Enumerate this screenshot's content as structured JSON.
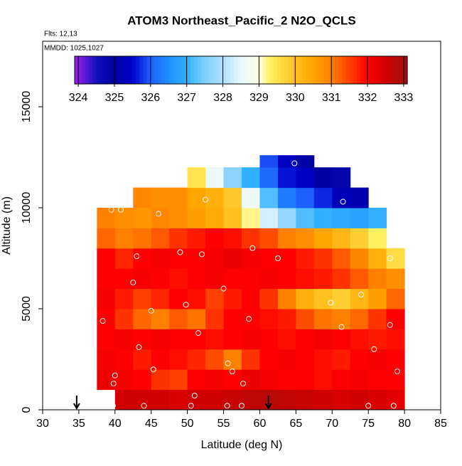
{
  "chart_data": {
    "type": "heatmap",
    "title": "ATOM3 Northeast_Pacific_2 N2O_QCLS",
    "annotations": [
      "Flts: 12,13",
      "MMDD: 1025,1027"
    ],
    "xlabel": "Latitude (deg N)",
    "ylabel": "Altitude (m)",
    "xlim": [
      30,
      85
    ],
    "ylim": [
      0,
      18240
    ],
    "xticks": [
      30,
      35,
      40,
      45,
      50,
      55,
      60,
      65,
      70,
      75,
      80,
      85
    ],
    "yticks": [
      0,
      5000,
      10000,
      15000
    ],
    "xbins": [
      37.5,
      40,
      42.5,
      45,
      47.5,
      50,
      52.5,
      55,
      57.5,
      60,
      62.5,
      65,
      67.5,
      70,
      72.5,
      75,
      77.5,
      80
    ],
    "ybins": [
      0,
      1000,
      2000,
      3000,
      4000,
      5000,
      6000,
      7000,
      8000,
      9000,
      10000,
      11000,
      12000,
      12600
    ],
    "values": [
      [
        null,
        332.5,
        332.5,
        332.5,
        332.4,
        332.5,
        332.5,
        332.6,
        332.7,
        332.8,
        332.7,
        332.6,
        332.5,
        332.4,
        332.5,
        332.4,
        332.3
      ],
      [
        332.2,
        332.1,
        332.0,
        331.6,
        331.5,
        332.0,
        332.1,
        332.0,
        332.2,
        332.1,
        332.0,
        332.0,
        331.9,
        332.0,
        332.1,
        332.0,
        332.0
      ],
      [
        332.1,
        332.0,
        331.8,
        332.0,
        331.9,
        331.7,
        331.4,
        331.0,
        331.6,
        332.0,
        332.1,
        332.0,
        331.9,
        331.8,
        332.0,
        332.1,
        332.0
      ],
      [
        332.0,
        332.1,
        332.0,
        332.1,
        332.0,
        332.0,
        331.9,
        332.0,
        332.1,
        332.0,
        331.9,
        332.0,
        332.1,
        332.0,
        331.9,
        331.8,
        331.9
      ],
      [
        332.0,
        331.6,
        331.2,
        331.0,
        331.3,
        331.1,
        331.6,
        332.0,
        332.0,
        331.9,
        331.8,
        331.4,
        331.1,
        331.0,
        331.2,
        331.6,
        332.0
      ],
      [
        332.1,
        331.8,
        331.5,
        331.7,
        332.0,
        331.9,
        331.5,
        331.8,
        332.0,
        331.6,
        331.0,
        330.3,
        330.0,
        329.8,
        330.2,
        330.6,
        331.2
      ],
      [
        332.0,
        332.0,
        332.1,
        332.0,
        331.9,
        332.0,
        332.1,
        332.0,
        332.0,
        332.1,
        332.0,
        331.9,
        331.8,
        331.6,
        331.3,
        331.0,
        330.8
      ],
      [
        332.0,
        331.7,
        332.0,
        332.1,
        332.0,
        332.0,
        332.1,
        332.2,
        332.1,
        332.0,
        332.0,
        331.8,
        331.6,
        331.3,
        330.9,
        330.3,
        329.6
      ],
      [
        331.2,
        331.0,
        331.1,
        331.3,
        331.6,
        331.8,
        332.0,
        331.9,
        331.6,
        331.4,
        331.0,
        330.8,
        330.5,
        330.2,
        329.8,
        329.3,
        null
      ],
      [
        331.0,
        330.8,
        330.7,
        330.9,
        330.8,
        330.6,
        330.4,
        330.0,
        329.2,
        328.3,
        327.7,
        327.2,
        327.0,
        326.9,
        326.8,
        327.0,
        null
      ],
      [
        null,
        null,
        330.9,
        330.8,
        330.8,
        330.5,
        330.3,
        329.9,
        328.6,
        327.2,
        326.3,
        326.0,
        325.7,
        325.3,
        325.2,
        null,
        null
      ],
      [
        null,
        null,
        null,
        null,
        null,
        329.5,
        328.6,
        327.6,
        327.0,
        326.1,
        325.6,
        325.4,
        325.0,
        324.8,
        null,
        null,
        null
      ],
      [
        null,
        null,
        null,
        null,
        null,
        null,
        null,
        null,
        null,
        325.9,
        325.4,
        324.9,
        null,
        null,
        null,
        null,
        null
      ]
    ],
    "points": {
      "x": [
        39.5,
        40.8,
        46,
        52.5,
        71.5,
        64.8,
        43,
        49,
        52,
        59,
        62.5,
        78,
        42.5,
        55,
        74,
        45,
        49.8,
        38.3,
        58.5,
        69.8,
        71.3,
        78,
        51.5,
        43.3,
        75.8,
        55.6,
        45.3,
        56.2,
        79,
        40,
        39.8,
        57.7,
        51,
        39.7,
        44,
        50.5,
        55.5,
        57.5,
        75,
        78.5
      ],
      "y": [
        9900,
        9900,
        9700,
        10400,
        10300,
        12200,
        7600,
        7800,
        7700,
        8000,
        7500,
        7500,
        6300,
        6000,
        5700,
        4900,
        5200,
        4400,
        4500,
        5300,
        4100,
        4200,
        3800,
        3100,
        3000,
        2300,
        2000,
        1900,
        1900,
        1700,
        1300,
        1300,
        700,
        200,
        200,
        200,
        200,
        200,
        200,
        200
      ]
    },
    "arrows_x": [
      34.7,
      61.2
    ],
    "colorbar": {
      "lim": [
        323.9,
        333.1
      ],
      "ticks": [
        324,
        325,
        326,
        327,
        328,
        329,
        330,
        331,
        332,
        333
      ],
      "stops": [
        {
          "value": 323.9,
          "color": "#a020f0"
        },
        {
          "value": 324.5,
          "color": "#1010c0"
        },
        {
          "value": 325,
          "color": "#0000a0"
        },
        {
          "value": 325.5,
          "color": "#0000cd"
        },
        {
          "value": 326,
          "color": "#1e60ff"
        },
        {
          "value": 326.5,
          "color": "#1e90ff"
        },
        {
          "value": 327,
          "color": "#30b0ff"
        },
        {
          "value": 327.5,
          "color": "#80d0ff"
        },
        {
          "value": 328,
          "color": "#b0e0ff"
        },
        {
          "value": 328.5,
          "color": "#e8f8ff"
        },
        {
          "value": 329,
          "color": "#ffffe0"
        },
        {
          "value": 329.3,
          "color": "#fff060"
        },
        {
          "value": 330,
          "color": "#ffc020"
        },
        {
          "value": 330.5,
          "color": "#ffa500"
        },
        {
          "value": 331,
          "color": "#ff8000"
        },
        {
          "value": 331.5,
          "color": "#ff4000"
        },
        {
          "value": 332,
          "color": "#ff0000"
        },
        {
          "value": 332.5,
          "color": "#d00000"
        },
        {
          "value": 333.1,
          "color": "#a01010"
        }
      ]
    }
  }
}
